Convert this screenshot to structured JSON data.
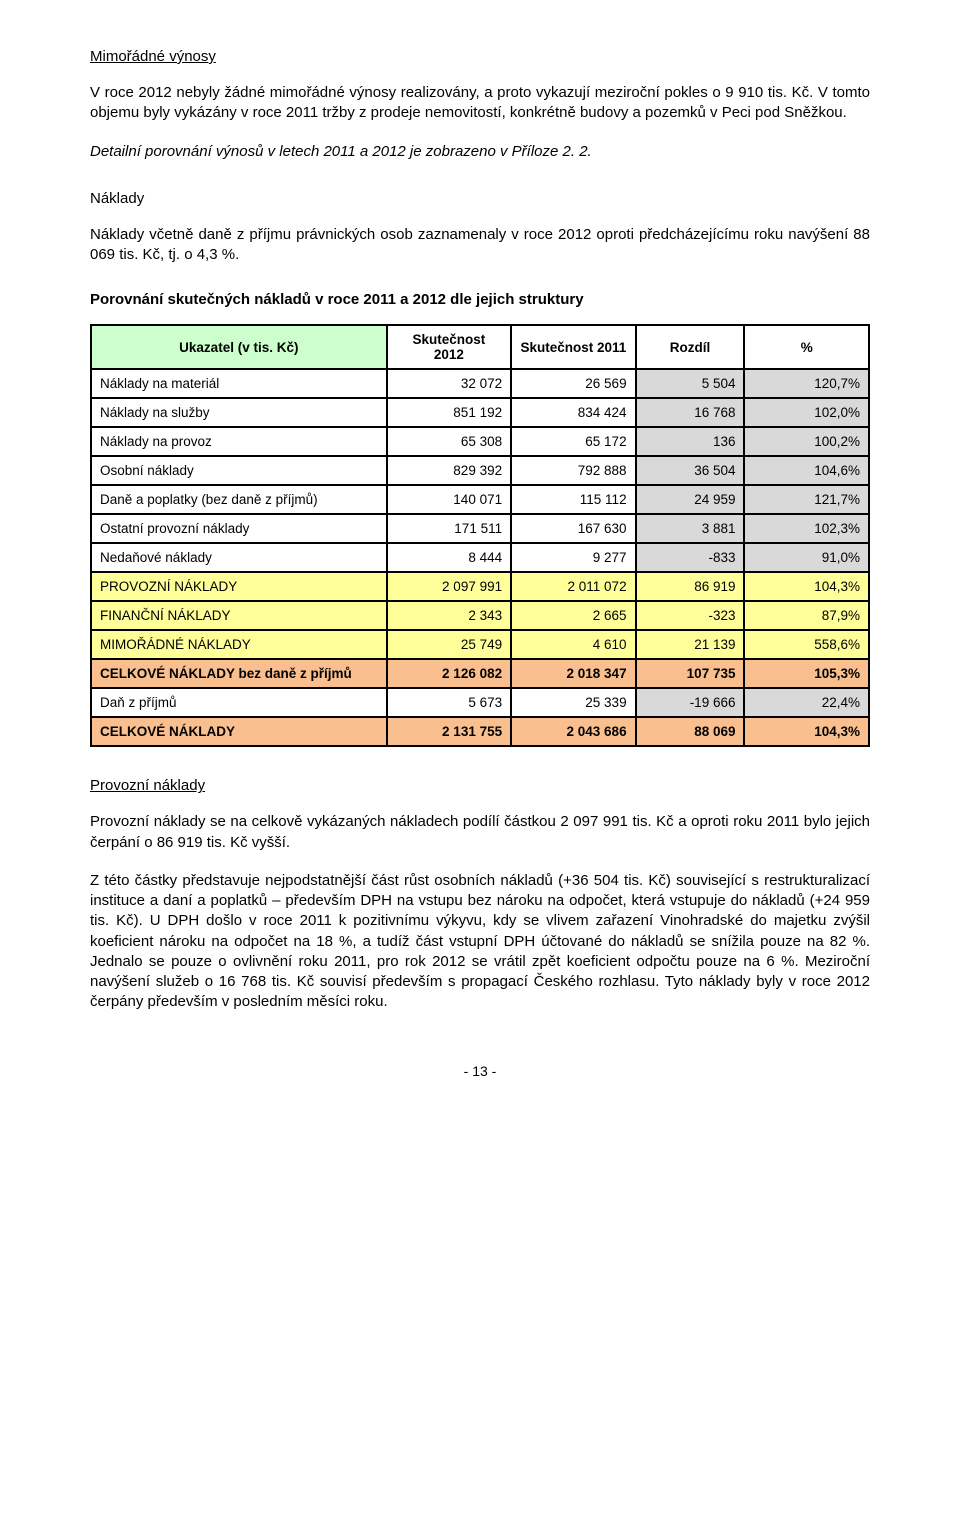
{
  "section1": {
    "title": "Mimořádné výnosy",
    "p1": "V roce 2012 nebyly žádné mimořádné výnosy realizovány, a proto vykazují meziroční pokles o 9 910 tis. Kč. V tomto objemu byly vykázány v roce 2011 tržby z prodeje nemovitostí, konkrétně budovy a pozemků v Peci pod Sněžkou.",
    "p2_italic": "Detailní porovnání výnosů v letech 2011 a 2012 je zobrazeno v Příloze 2. 2."
  },
  "section2": {
    "title": "Náklady",
    "p1": "Náklady včetně daně z příjmu právnických osob zaznamenaly v roce 2012 oproti předcházejícímu roku navýšení 88 069 tis. Kč, tj. o 4,3 %."
  },
  "tableTitle": "Porovnání skutečných nákladů v roce 2011 a 2012 dle jejich struktury",
  "table": {
    "headers": {
      "c0": "Ukazatel (v tis. Kč)",
      "c1": "Skutečnost 2012",
      "c2": "Skutečnost 2011",
      "c3": "Rozdíl",
      "c4": "%"
    },
    "rows": [
      {
        "label": "Náklady na materiál",
        "v12": "32 072",
        "v11": "26 569",
        "diff": "5 504",
        "pct": "120,7%",
        "style": "plain"
      },
      {
        "label": "Náklady na služby",
        "v12": "851 192",
        "v11": "834 424",
        "diff": "16 768",
        "pct": "102,0%",
        "style": "plain"
      },
      {
        "label": "Náklady na provoz",
        "v12": "65 308",
        "v11": "65 172",
        "diff": "136",
        "pct": "100,2%",
        "style": "plain"
      },
      {
        "label": "Osobní náklady",
        "v12": "829 392",
        "v11": "792 888",
        "diff": "36 504",
        "pct": "104,6%",
        "style": "plain"
      },
      {
        "label": "Daně a poplatky (bez daně z příjmů)",
        "v12": "140 071",
        "v11": "115 112",
        "diff": "24 959",
        "pct": "121,7%",
        "style": "plain"
      },
      {
        "label": "Ostatní provozní náklady",
        "v12": "171 511",
        "v11": "167 630",
        "diff": "3 881",
        "pct": "102,3%",
        "style": "plain"
      },
      {
        "label": "Nedaňové náklady",
        "v12": "8 444",
        "v11": "9 277",
        "diff": "-833",
        "pct": "91,0%",
        "style": "plain"
      },
      {
        "label": "PROVOZNÍ NÁKLADY",
        "v12": "2 097 991",
        "v11": "2 011 072",
        "diff": "86 919",
        "pct": "104,3%",
        "style": "yellow"
      },
      {
        "label": "FINANČNÍ NÁKLADY",
        "v12": "2 343",
        "v11": "2 665",
        "diff": "-323",
        "pct": "87,9%",
        "style": "yellow"
      },
      {
        "label": "MIMOŘÁDNÉ NÁKLADY",
        "v12": "25 749",
        "v11": "4 610",
        "diff": "21 139",
        "pct": "558,6%",
        "style": "yellow"
      },
      {
        "label": "CELKOVÉ NÁKLADY bez daně z příjmů",
        "v12": "2 126 082",
        "v11": "2 018 347",
        "diff": "107 735",
        "pct": "105,3%",
        "style": "orange",
        "bold": true
      },
      {
        "label": "Daň z příjmů",
        "v12": "5 673",
        "v11": "25 339",
        "diff": "-19 666",
        "pct": "22,4%",
        "style": "plain"
      },
      {
        "label": "CELKOVÉ NÁKLADY",
        "v12": "2 131 755",
        "v11": "2 043 686",
        "diff": "88 069",
        "pct": "104,3%",
        "style": "orange",
        "bold": true
      }
    ]
  },
  "section3": {
    "title": "Provozní náklady",
    "p1": "Provozní náklady se na celkově vykázaných nákladech podílí částkou 2 097 991 tis. Kč a oproti roku 2011 bylo jejich čerpání o 86 919 tis. Kč vyšší.",
    "p2": "Z této částky představuje nejpodstatnější část růst osobních nákladů (+36 504 tis. Kč) související s restrukturalizací instituce a daní a poplatků – především DPH na vstupu bez nároku na odpočet, která vstupuje do nákladů (+24 959 tis. Kč). U DPH došlo v roce 2011 k pozitivnímu výkyvu, kdy se vlivem zařazení Vinohradské do majetku zvýšil koeficient nároku na odpočet na 18 %, a tudíž část vstupní DPH účtované do nákladů se snížila pouze na 82 %. Jednalo se pouze o ovlivnění roku 2011, pro rok 2012 se vrátil zpět koeficient odpočtu pouze na 6 %. Meziroční navýšení služeb o 16 768 tis. Kč souvisí především s propagací Českého rozhlasu. Tyto náklady byly v roce 2012 čerpány především v posledním měsíci roku."
  },
  "footer": "- 13 -",
  "colors": {
    "headerGreen": "#ccffcc",
    "rowYellow": "#ffff99",
    "rowOrange": "#fabf8f",
    "cellGray": "#d9d9d9",
    "border": "#000000",
    "text": "#000000",
    "background": "#ffffff"
  },
  "fonts": {
    "body_pt": 11,
    "table_pt": 10,
    "family": "Arial"
  },
  "tableLayout": {
    "col_widths_pct": [
      38,
      16,
      16,
      14,
      16
    ]
  }
}
